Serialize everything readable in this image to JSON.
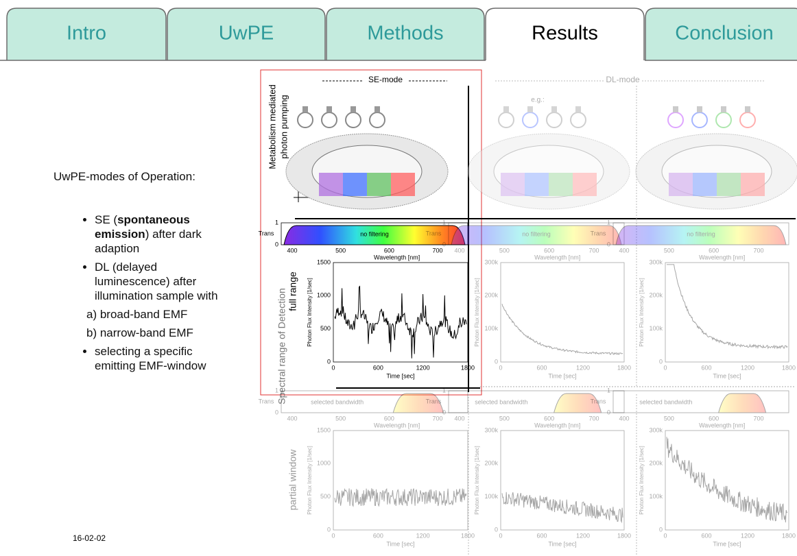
{
  "tabs": [
    {
      "label": "Intro",
      "active": false
    },
    {
      "label": "UwPE",
      "active": false
    },
    {
      "label": "Methods",
      "active": false
    },
    {
      "label": "Results",
      "active": true
    },
    {
      "label": "Conclusion",
      "active": false
    }
  ],
  "sidebar": {
    "heading": "UwPE-modes of Operation:",
    "bullets": [
      {
        "parts": [
          {
            "text": "SE ("
          },
          {
            "text": "spontaneous emission",
            "bold": true
          },
          {
            "text": ") after dark adaption"
          }
        ],
        "sub": []
      },
      {
        "parts": [
          {
            "text": "DL (delayed luminescence) after illumination sample with"
          }
        ],
        "sub": [
          "a) broad-band EMF",
          "b) narrow-band EMF"
        ]
      },
      {
        "parts": [
          {
            "text": "selecting a specific emitting EMF-window"
          }
        ],
        "sub": []
      }
    ]
  },
  "footer": {
    "date": "16-02-02"
  },
  "figure": {
    "se_mode": "SE-mode",
    "dl_mode": "DL-mode",
    "eg": "e.g.:",
    "pumping": [
      "Metabolism mediated",
      "photon pumping"
    ],
    "spectral": "Spectral range of Detection",
    "full": "full range",
    "partial": "partial window",
    "trans": "Trans",
    "no_filter": "no filtering",
    "selected": "selected bandwidth",
    "wavelength": "Wavelength [nm]",
    "flux": "Photon Flux Intensity [1/sec]",
    "time": "Time [sec]",
    "trans_ticks": [
      "0",
      "1"
    ],
    "wl_ticks": [
      "400",
      "500",
      "600",
      "700"
    ],
    "time_ticks": [
      "0",
      "600",
      "1200",
      "1800"
    ],
    "se_yticks": [
      "0",
      "500",
      "1000",
      "1500"
    ],
    "dl_yticks": [
      "0",
      "100k",
      "200k",
      "300k"
    ]
  }
}
